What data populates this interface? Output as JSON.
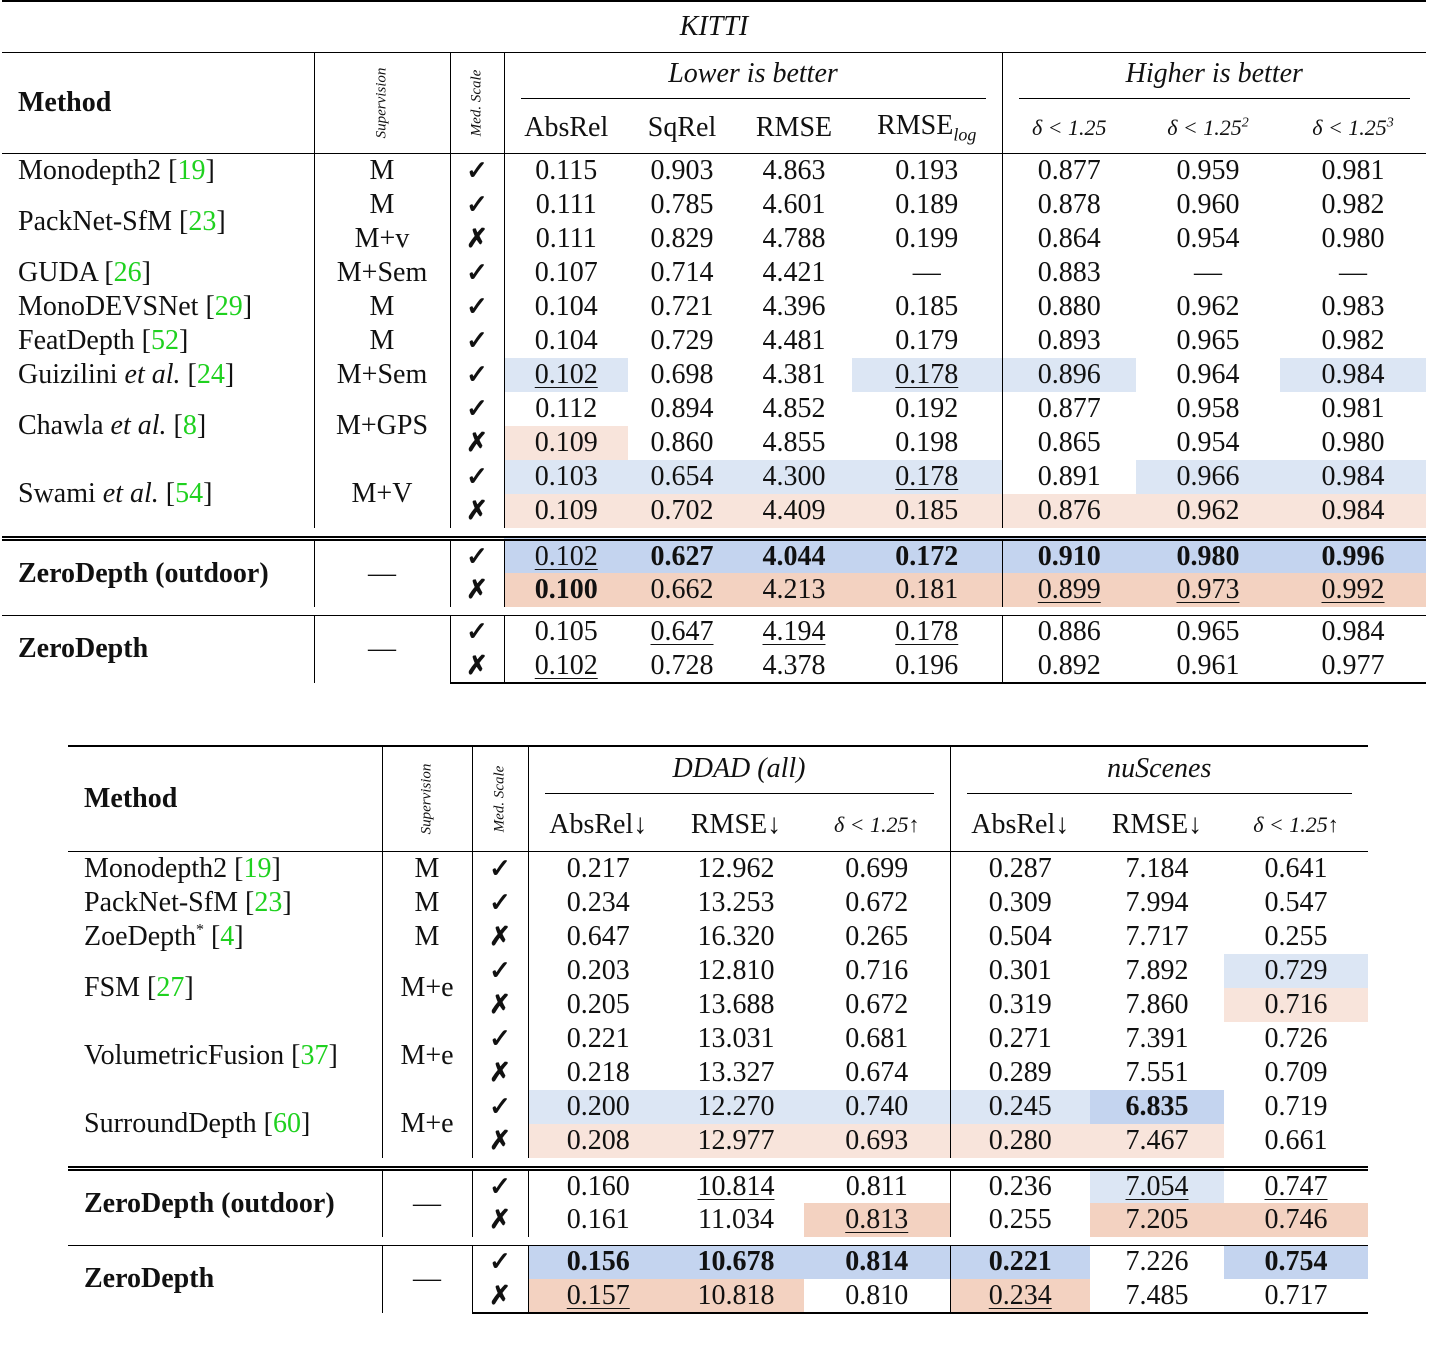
{
  "table1": {
    "caption": "KITTI",
    "header": {
      "method": "Method",
      "supervision": "Supervision",
      "med_scale": "Med. Scale",
      "lower_is_better": "Lower is better",
      "higher_is_better": "Higher is better",
      "cols": [
        "AbsRel",
        "SqRel",
        "RMSE",
        "RMSE",
        "log",
        "δ < 1.25",
        "δ < 1.25",
        "2",
        "δ < 1.25",
        "3"
      ]
    },
    "rows": [
      {
        "method": "Monodepth2",
        "cite": "19",
        "sup": "M",
        "scale": "✓",
        "v": [
          "0.115",
          "0.903",
          "4.863",
          "0.193",
          "0.877",
          "0.959",
          "0.981"
        ]
      },
      {
        "method": "PackNet-SfM",
        "cite": "23",
        "sup": "M",
        "scale": "✓",
        "v": [
          "0.111",
          "0.785",
          "4.601",
          "0.189",
          "0.878",
          "0.960",
          "0.982"
        ]
      },
      {
        "sup": "M+v",
        "scale": "✗",
        "v": [
          "0.111",
          "0.829",
          "4.788",
          "0.199",
          "0.864",
          "0.954",
          "0.980"
        ]
      },
      {
        "method": "GUDA",
        "cite": "26",
        "sup": "M+Sem",
        "scale": "✓",
        "v": [
          "0.107",
          "0.714",
          "4.421",
          "—",
          "0.883",
          "—",
          "—"
        ]
      },
      {
        "method": "MonoDEVSNet",
        "cite": "29",
        "sup": "M",
        "scale": "✓",
        "v": [
          "0.104",
          "0.721",
          "4.396",
          "0.185",
          "0.880",
          "0.962",
          "0.983"
        ]
      },
      {
        "method": "FeatDepth",
        "cite": "52",
        "sup": "M",
        "scale": "✓",
        "v": [
          "0.104",
          "0.729",
          "4.481",
          "0.179",
          "0.893",
          "0.965",
          "0.982"
        ]
      },
      {
        "method": "Guizilini",
        "etal": "et al.",
        "cite": "24",
        "sup": "M+Sem",
        "scale": "✓",
        "v": [
          "0.102",
          "0.698",
          "4.381",
          "0.178",
          "0.896",
          "0.964",
          "0.984"
        ]
      },
      {
        "method": "Chawla",
        "etal": "et al.",
        "cite": "8",
        "sup": "M+GPS",
        "scale": "✓",
        "v": [
          "0.112",
          "0.894",
          "4.852",
          "0.192",
          "0.877",
          "0.958",
          "0.981"
        ]
      },
      {
        "scale": "✗",
        "v": [
          "0.109",
          "0.860",
          "4.855",
          "0.198",
          "0.865",
          "0.954",
          "0.980"
        ]
      },
      {
        "method": "Swami",
        "etal": "et al.",
        "cite": "54",
        "sup": "M+V",
        "scale": "✓",
        "v": [
          "0.103",
          "0.654",
          "4.300",
          "0.178",
          "0.891",
          "0.966",
          "0.984"
        ]
      },
      {
        "scale": "✗",
        "v": [
          "0.109",
          "0.702",
          "4.409",
          "0.185",
          "0.876",
          "0.962",
          "0.984"
        ]
      },
      {
        "method": "ZeroDepth (outdoor)",
        "sup": "—",
        "scale": "✓",
        "v": [
          "0.102",
          "0.627",
          "4.044",
          "0.172",
          "0.910",
          "0.980",
          "0.996"
        ]
      },
      {
        "scale": "✗",
        "v": [
          "0.100",
          "0.662",
          "4.213",
          "0.181",
          "0.899",
          "0.973",
          "0.992"
        ]
      },
      {
        "method": "ZeroDepth",
        "sup": "—",
        "scale": "✓",
        "v": [
          "0.105",
          "0.647",
          "4.194",
          "0.178",
          "0.886",
          "0.965",
          "0.984"
        ]
      },
      {
        "scale": "✗",
        "v": [
          "0.102",
          "0.728",
          "4.378",
          "0.196",
          "0.892",
          "0.961",
          "0.977"
        ]
      }
    ]
  },
  "table2": {
    "header": {
      "method": "Method",
      "supervision": "Supervision",
      "med_scale": "Med. Scale",
      "ddad": "DDAD (all)",
      "nuscenes": "nuScenes",
      "cols": [
        "AbsRel↓",
        "RMSE↓",
        "δ < 1.25↑",
        "AbsRel↓",
        "RMSE↓",
        "δ < 1.25↑"
      ]
    },
    "rows": [
      {
        "method": "Monodepth2",
        "cite": "19",
        "sup": "M",
        "scale": "✓",
        "v": [
          "0.217",
          "12.962",
          "0.699",
          "0.287",
          "7.184",
          "0.641"
        ]
      },
      {
        "method": "PackNet-SfM",
        "cite": "23",
        "sup": "M",
        "scale": "✓",
        "v": [
          "0.234",
          "13.253",
          "0.672",
          "0.309",
          "7.994",
          "0.547"
        ]
      },
      {
        "method": "ZoeDepth",
        "star": "*",
        "cite": "4",
        "sup": "M",
        "scale": "✗",
        "v": [
          "0.647",
          "16.320",
          "0.265",
          "0.504",
          "7.717",
          "0.255"
        ]
      },
      {
        "method": "FSM",
        "cite": "27",
        "sup": "M+e",
        "scale": "✓",
        "v": [
          "0.203",
          "12.810",
          "0.716",
          "0.301",
          "7.892",
          "0.729"
        ]
      },
      {
        "scale": "✗",
        "v": [
          "0.205",
          "13.688",
          "0.672",
          "0.319",
          "7.860",
          "0.716"
        ]
      },
      {
        "method": "VolumetricFusion",
        "cite": "37",
        "sup": "M+e",
        "scale": "✓",
        "v": [
          "0.221",
          "13.031",
          "0.681",
          "0.271",
          "7.391",
          "0.726"
        ]
      },
      {
        "scale": "✗",
        "v": [
          "0.218",
          "13.327",
          "0.674",
          "0.289",
          "7.551",
          "0.709"
        ]
      },
      {
        "method": "SurroundDepth",
        "cite": "60",
        "sup": "M+e",
        "scale": "✓",
        "v": [
          "0.200",
          "12.270",
          "0.740",
          "0.245",
          "6.835",
          "0.719"
        ]
      },
      {
        "scale": "✗",
        "v": [
          "0.208",
          "12.977",
          "0.693",
          "0.280",
          "7.467",
          "0.661"
        ]
      },
      {
        "method": "ZeroDepth (outdoor)",
        "sup": "—",
        "scale": "✓",
        "v": [
          "0.160",
          "10.814",
          "0.811",
          "0.236",
          "7.054",
          "0.747"
        ]
      },
      {
        "scale": "✗",
        "v": [
          "0.161",
          "11.034",
          "0.813",
          "0.255",
          "7.205",
          "0.746"
        ]
      },
      {
        "method": "ZeroDepth",
        "sup": "—",
        "scale": "✓",
        "v": [
          "0.156",
          "10.678",
          "0.814",
          "0.221",
          "7.226",
          "0.754"
        ]
      },
      {
        "scale": "✗",
        "v": [
          "0.157",
          "10.818",
          "0.810",
          "0.234",
          "7.485",
          "0.717"
        ]
      }
    ]
  },
  "colors": {
    "blue": "#dce6f4",
    "blue_strong": "#c4d4ef",
    "orange": "#f8e4db",
    "orange_strong": "#f3d2c1",
    "cite": "#1fd11f"
  }
}
